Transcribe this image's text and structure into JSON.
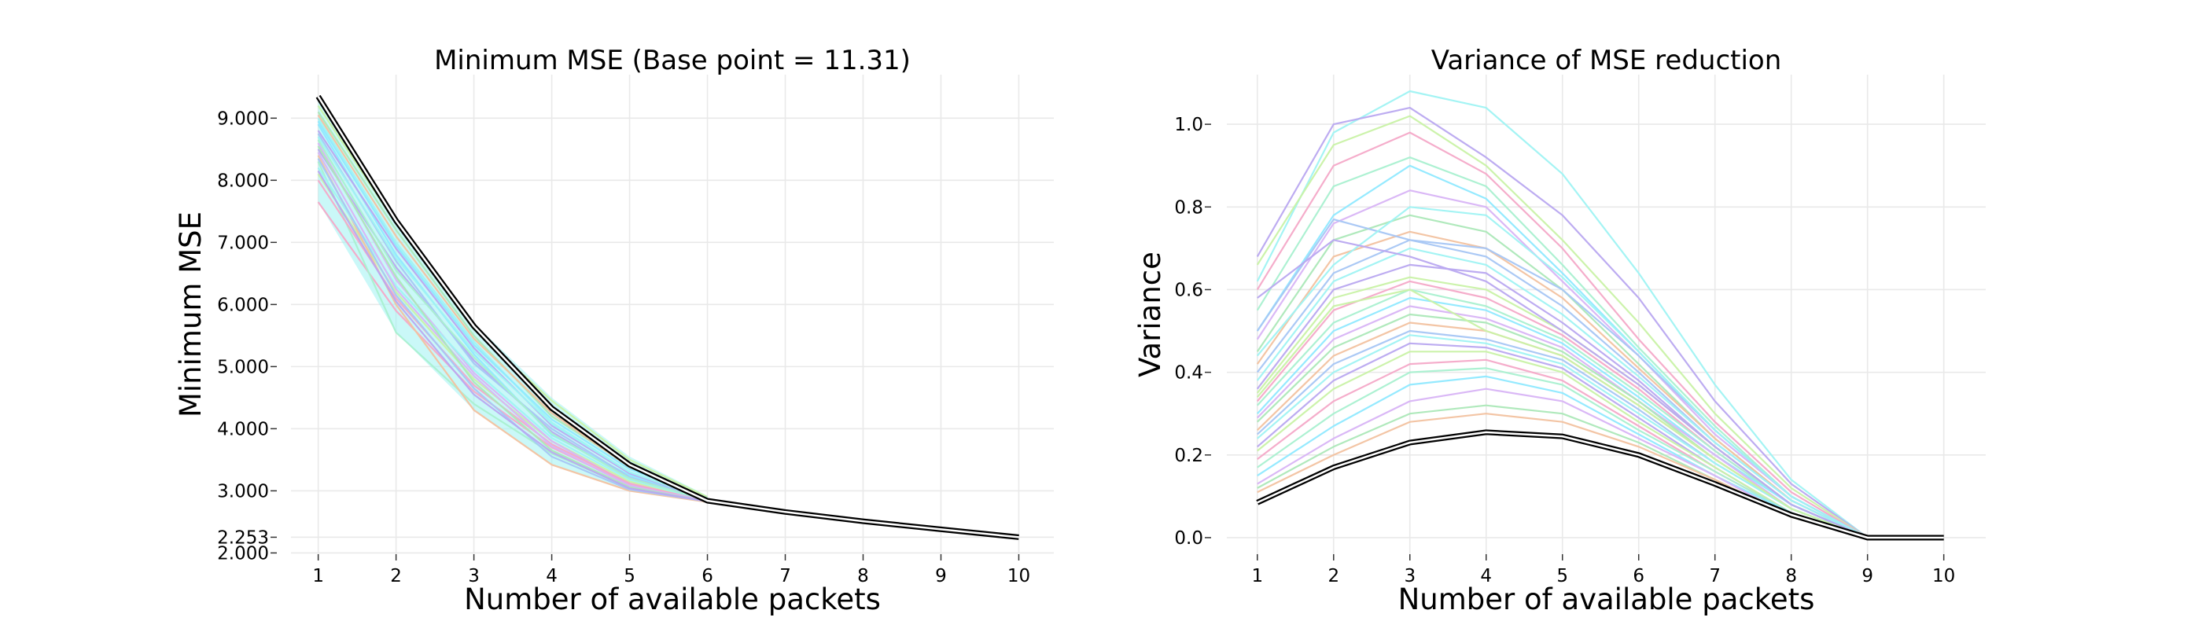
{
  "chart_data": [
    {
      "type": "line",
      "title": "Minimum MSE (Base point = 11.31)",
      "xlabel": "Number of available packets",
      "ylabel": "Minimum MSE",
      "xlim": [
        0.65,
        10.45
      ],
      "ylim": [
        1.98,
        9.7
      ],
      "x_ticks": [
        1,
        2,
        3,
        4,
        5,
        6,
        7,
        8,
        9,
        10
      ],
      "x_tick_labels": [
        "1",
        "2",
        "3",
        "4",
        "5",
        "6",
        "7",
        "8",
        "9",
        "10"
      ],
      "y_ticks": [
        2.0,
        2.253,
        3.0,
        4.0,
        5.0,
        6.0,
        7.0,
        8.0,
        9.0
      ],
      "y_tick_labels": [
        "2.000",
        "2.253",
        "3.000",
        "4.000",
        "5.000",
        "6.000",
        "7.000",
        "8.000",
        "9.000"
      ],
      "grid": true,
      "colors": [
        "#9ff3f3",
        "#b9a8f0",
        "#c9f2a6",
        "#f4a9c8",
        "#a9f0d0",
        "#8fe9ff",
        "#d8b4f5",
        "#ace8b8",
        "#f2c2a0",
        "#a7c6f4"
      ],
      "highlight_color": "#000000",
      "highlight": [
        9.35,
        7.35,
        5.65,
        4.33,
        3.42,
        2.84,
        2.66,
        2.51,
        2.38,
        2.253
      ],
      "envelope_low": [
        7.65,
        5.55,
        4.3,
        3.42,
        3.0,
        2.82
      ],
      "envelope_high": [
        9.3,
        7.4,
        5.7,
        4.5,
        3.55,
        2.92
      ],
      "series": [
        [
          9.0,
          7.0,
          5.4,
          4.1,
          3.3,
          2.86
        ],
        [
          8.5,
          6.6,
          5.1,
          3.95,
          3.2,
          2.85
        ],
        [
          8.1,
          6.2,
          4.8,
          3.8,
          3.15,
          2.84
        ],
        [
          7.65,
          5.9,
          4.6,
          3.7,
          3.1,
          2.84
        ],
        [
          8.3,
          5.55,
          4.4,
          3.6,
          3.05,
          2.83
        ],
        [
          8.9,
          6.8,
          5.2,
          3.9,
          3.25,
          2.85
        ],
        [
          8.6,
          6.4,
          4.9,
          3.8,
          3.1,
          2.84
        ],
        [
          9.1,
          7.2,
          5.5,
          4.2,
          3.4,
          2.87
        ],
        [
          8.4,
          6.0,
          4.3,
          3.42,
          3.0,
          2.82
        ],
        [
          8.75,
          6.7,
          5.05,
          4.0,
          3.22,
          2.85
        ],
        [
          8.2,
          6.3,
          4.95,
          3.85,
          3.18,
          2.84
        ],
        [
          8.8,
          6.9,
          5.3,
          4.05,
          3.28,
          2.86
        ],
        [
          9.2,
          7.3,
          5.6,
          4.45,
          3.5,
          2.9
        ],
        [
          8.0,
          6.1,
          4.7,
          3.75,
          3.12,
          2.83
        ],
        [
          8.65,
          6.55,
          5.15,
          3.92,
          3.2,
          2.85
        ],
        [
          8.95,
          6.95,
          5.35,
          4.15,
          3.35,
          2.88
        ],
        [
          8.45,
          6.25,
          4.85,
          3.72,
          3.08,
          2.84
        ],
        [
          8.55,
          6.45,
          4.75,
          3.65,
          3.06,
          2.83
        ],
        [
          9.05,
          7.1,
          5.45,
          4.25,
          3.38,
          2.87
        ],
        [
          8.35,
          6.15,
          4.65,
          3.55,
          3.02,
          2.83
        ],
        [
          8.7,
          6.75,
          5.25,
          4.08,
          3.3,
          2.86
        ],
        [
          8.15,
          6.05,
          4.55,
          3.62,
          3.04,
          2.83
        ]
      ]
    },
    {
      "type": "line",
      "title": "Variance of MSE reduction",
      "xlabel": "Number of available packets",
      "ylabel": "Variance",
      "xlim": [
        0.6,
        10.55
      ],
      "ylim": [
        -0.04,
        1.12
      ],
      "x_ticks": [
        1,
        2,
        3,
        4,
        5,
        6,
        7,
        8,
        9,
        10
      ],
      "x_tick_labels": [
        "1",
        "2",
        "3",
        "4",
        "5",
        "6",
        "7",
        "8",
        "9",
        "10"
      ],
      "y_ticks": [
        0.0,
        0.2,
        0.4,
        0.6,
        0.8,
        1.0
      ],
      "y_tick_labels": [
        "0.0",
        "0.2",
        "0.4",
        "0.6",
        "0.8",
        "1.0"
      ],
      "grid": true,
      "colors": [
        "#9ff3f3",
        "#b9a8f0",
        "#c9f2a6",
        "#f4a9c8",
        "#a9f0d0",
        "#8fe9ff",
        "#d8b4f5",
        "#ace8b8",
        "#f2c2a0",
        "#a7c6f4"
      ],
      "highlight_color": "#000000",
      "highlight": [
        0.085,
        0.17,
        0.23,
        0.255,
        0.245,
        0.2,
        0.13,
        0.055,
        0.0,
        0.0
      ],
      "series": [
        [
          0.62,
          0.98,
          1.08,
          1.04,
          0.88,
          0.64,
          0.37,
          0.14,
          0.0
        ],
        [
          0.68,
          1.0,
          1.04,
          0.92,
          0.78,
          0.58,
          0.33,
          0.13,
          0.0
        ],
        [
          0.66,
          0.95,
          1.02,
          0.9,
          0.72,
          0.52,
          0.3,
          0.12,
          0.0
        ],
        [
          0.6,
          0.9,
          0.98,
          0.88,
          0.7,
          0.48,
          0.28,
          0.11,
          0.0
        ],
        [
          0.55,
          0.85,
          0.92,
          0.85,
          0.66,
          0.46,
          0.27,
          0.1,
          0.0
        ],
        [
          0.5,
          0.78,
          0.9,
          0.82,
          0.64,
          0.45,
          0.26,
          0.1,
          0.0
        ],
        [
          0.48,
          0.76,
          0.84,
          0.8,
          0.62,
          0.44,
          0.25,
          0.1,
          0.0
        ],
        [
          0.45,
          0.72,
          0.78,
          0.74,
          0.6,
          0.42,
          0.24,
          0.09,
          0.0
        ],
        [
          0.42,
          0.68,
          0.74,
          0.7,
          0.58,
          0.41,
          0.24,
          0.09,
          0.0
        ],
        [
          0.4,
          0.64,
          0.72,
          0.68,
          0.56,
          0.4,
          0.23,
          0.09,
          0.0
        ],
        [
          0.38,
          0.62,
          0.7,
          0.66,
          0.54,
          0.39,
          0.23,
          0.09,
          0.0
        ],
        [
          0.36,
          0.6,
          0.66,
          0.64,
          0.52,
          0.38,
          0.22,
          0.08,
          0.0
        ],
        [
          0.35,
          0.58,
          0.63,
          0.6,
          0.5,
          0.37,
          0.22,
          0.08,
          0.0
        ],
        [
          0.33,
          0.55,
          0.62,
          0.58,
          0.49,
          0.36,
          0.21,
          0.08,
          0.0
        ],
        [
          0.32,
          0.52,
          0.6,
          0.56,
          0.48,
          0.35,
          0.21,
          0.08,
          0.0
        ],
        [
          0.3,
          0.5,
          0.58,
          0.55,
          0.47,
          0.34,
          0.2,
          0.08,
          0.0
        ],
        [
          0.29,
          0.48,
          0.56,
          0.53,
          0.46,
          0.33,
          0.2,
          0.07,
          0.0
        ],
        [
          0.28,
          0.46,
          0.54,
          0.52,
          0.45,
          0.33,
          0.19,
          0.07,
          0.0
        ],
        [
          0.26,
          0.44,
          0.52,
          0.5,
          0.44,
          0.32,
          0.19,
          0.07,
          0.0
        ],
        [
          0.25,
          0.42,
          0.5,
          0.48,
          0.43,
          0.31,
          0.18,
          0.07,
          0.0
        ],
        [
          0.24,
          0.4,
          0.49,
          0.47,
          0.42,
          0.3,
          0.18,
          0.07,
          0.0
        ],
        [
          0.22,
          0.38,
          0.47,
          0.46,
          0.41,
          0.29,
          0.17,
          0.06,
          0.0
        ],
        [
          0.21,
          0.36,
          0.45,
          0.45,
          0.4,
          0.28,
          0.17,
          0.06,
          0.0
        ],
        [
          0.19,
          0.33,
          0.42,
          0.43,
          0.38,
          0.27,
          0.16,
          0.06,
          0.0
        ],
        [
          0.17,
          0.3,
          0.4,
          0.41,
          0.37,
          0.26,
          0.16,
          0.06,
          0.0
        ],
        [
          0.15,
          0.27,
          0.37,
          0.39,
          0.35,
          0.25,
          0.15,
          0.06,
          0.0
        ],
        [
          0.13,
          0.24,
          0.33,
          0.36,
          0.33,
          0.24,
          0.15,
          0.05,
          0.0
        ],
        [
          0.12,
          0.22,
          0.3,
          0.32,
          0.3,
          0.23,
          0.14,
          0.05,
          0.0
        ],
        [
          0.11,
          0.2,
          0.28,
          0.3,
          0.28,
          0.22,
          0.14,
          0.05,
          0.0
        ],
        [
          0.5,
          0.77,
          0.72,
          0.7,
          0.6,
          0.44,
          0.26,
          0.1,
          0.0
        ],
        [
          0.44,
          0.66,
          0.8,
          0.78,
          0.63,
          0.45,
          0.26,
          0.1,
          0.0
        ],
        [
          0.58,
          0.72,
          0.68,
          0.62,
          0.5,
          0.37,
          0.22,
          0.08,
          0.0
        ],
        [
          0.34,
          0.56,
          0.6,
          0.5,
          0.44,
          0.32,
          0.19,
          0.07,
          0.0
        ]
      ]
    }
  ]
}
